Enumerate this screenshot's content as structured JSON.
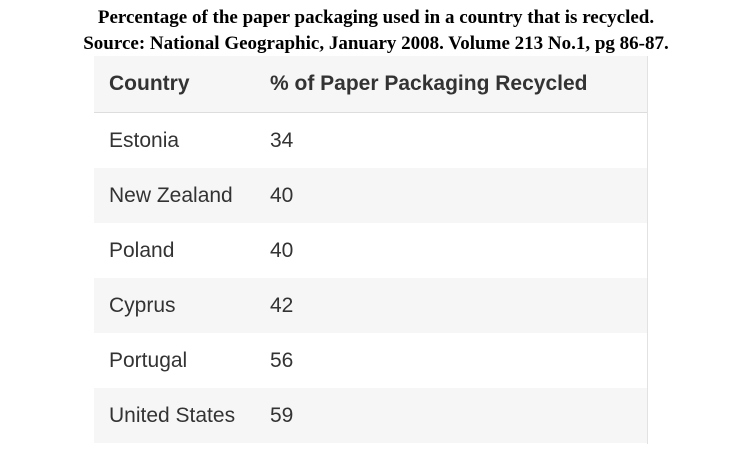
{
  "caption": {
    "line1": "Percentage of the paper packaging used in a country that is recycled.",
    "line2": "Source: National Geographic, January 2008. Volume 213 No.1, pg 86-87."
  },
  "table": {
    "headers": [
      "Country",
      "% of Paper Packaging Recycled"
    ],
    "rows": [
      [
        "Estonia",
        "34"
      ],
      [
        "New Zealand",
        "40"
      ],
      [
        "Poland",
        "40"
      ],
      [
        "Cyprus",
        "42"
      ],
      [
        "Portugal",
        "56"
      ],
      [
        "United States",
        "59"
      ]
    ]
  },
  "chart_data": {
    "type": "table",
    "columns": [
      "Country",
      "% of Paper Packaging Recycled"
    ],
    "categories": [
      "Estonia",
      "New Zealand",
      "Poland",
      "Cyprus",
      "Portugal",
      "United States"
    ],
    "values": [
      34,
      40,
      40,
      42,
      56,
      59
    ]
  },
  "colors": {
    "header_bg": "#f6f6f6",
    "alt_row_bg": "#f6f6f6",
    "text": "#333333"
  }
}
